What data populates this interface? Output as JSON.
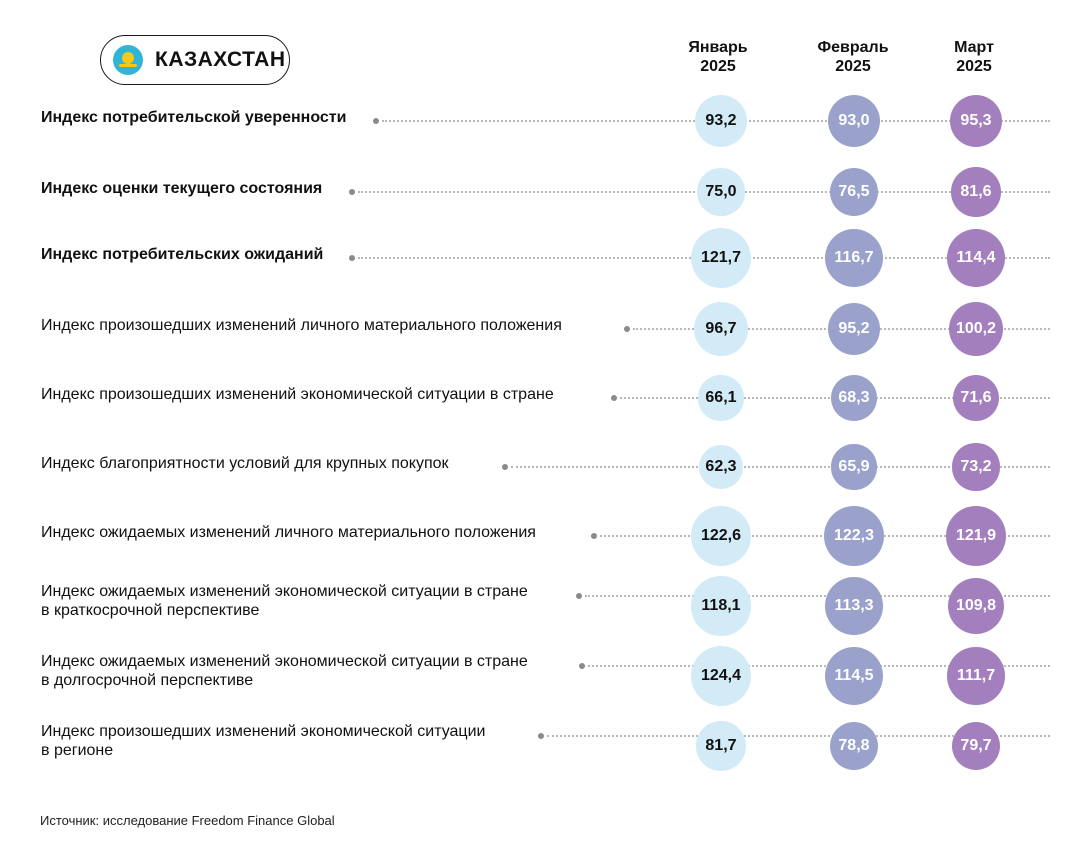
{
  "header": {
    "country": "КАЗАХСТАН",
    "flag_icon": "kazakhstan-flag-icon"
  },
  "columns": [
    {
      "month": "Январь",
      "year": "2025"
    },
    {
      "month": "Февраль",
      "year": "2025"
    },
    {
      "month": "Март",
      "year": "2025"
    }
  ],
  "colors": {
    "jan": "#d3ebf7",
    "feb": "#9aa2cc",
    "mar": "#a47fbd",
    "dots": "#b8b8b8"
  },
  "source": "Источник: исследование Freedom Finance Global",
  "chart_data": {
    "type": "table",
    "categories": [
      "Январь 2025",
      "Февраль 2025",
      "Март 2025"
    ],
    "rows": [
      {
        "label": [
          "Индекс потребительской уверенности"
        ],
        "bold": true,
        "values": [
          "93,2",
          "93,0",
          "95,3"
        ]
      },
      {
        "label": [
          "Индекс оценки текущего состояния"
        ],
        "bold": true,
        "values": [
          "75,0",
          "76,5",
          "81,6"
        ]
      },
      {
        "label": [
          "Индекс потребительских ожиданий"
        ],
        "bold": true,
        "values": [
          "121,7",
          "116,7",
          "114,4"
        ]
      },
      {
        "label": [
          "Индекс произошедших изменений личного материального положения"
        ],
        "bold": false,
        "values": [
          "96,7",
          "95,2",
          "100,2"
        ]
      },
      {
        "label": [
          "Индекс произошедших изменений экономической ситуации в стране"
        ],
        "bold": false,
        "values": [
          "66,1",
          "68,3",
          "71,6"
        ]
      },
      {
        "label": [
          "Индекс благоприятности условий для крупных покупок"
        ],
        "bold": false,
        "values": [
          "62,3",
          "65,9",
          "73,2"
        ]
      },
      {
        "label": [
          "Индекс ожидаемых изменений личного материального положения"
        ],
        "bold": false,
        "values": [
          "122,6",
          "122,3",
          "121,9"
        ]
      },
      {
        "label": [
          "Индекс ожидаемых изменений экономической ситуации в стране",
          "в краткосрочной перспективе"
        ],
        "bold": false,
        "values": [
          "118,1",
          "113,3",
          "109,8"
        ]
      },
      {
        "label": [
          "Индекс ожидаемых изменений экономической ситуации в стране",
          "в долгосрочной перспективе"
        ],
        "bold": false,
        "values": [
          "124,4",
          "114,5",
          "111,7"
        ]
      },
      {
        "label": [
          "Индекс произошедших изменений экономической ситуации",
          "в регионе"
        ],
        "bold": false,
        "values": [
          "81,7",
          "78,8",
          "79,7"
        ]
      }
    ]
  }
}
